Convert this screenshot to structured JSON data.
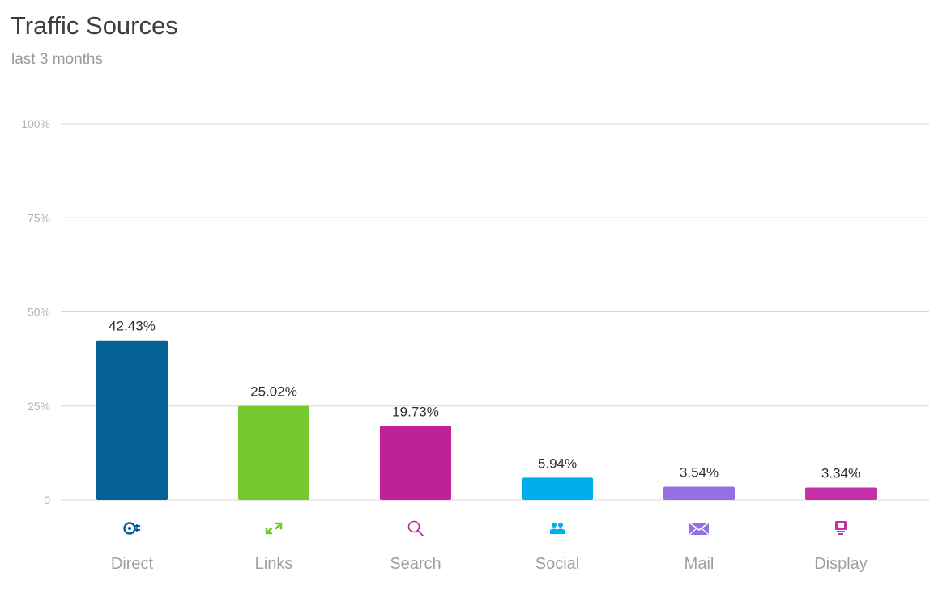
{
  "title": "Traffic Sources",
  "subtitle": "last 3 months",
  "chart_data": {
    "type": "bar",
    "title": "Traffic Sources",
    "subtitle": "last 3 months",
    "categories": [
      "Direct",
      "Links",
      "Search",
      "Social",
      "Mail",
      "Display"
    ],
    "values": [
      42.43,
      25.02,
      19.73,
      5.94,
      3.54,
      3.34
    ],
    "value_labels": [
      "42.43%",
      "25.02%",
      "19.73%",
      "5.94%",
      "3.54%",
      "3.34%"
    ],
    "ylim": [
      0,
      100
    ],
    "yticks": [
      {
        "value": 0,
        "label": "0"
      },
      {
        "value": 25,
        "label": "25%"
      },
      {
        "value": 50,
        "label": "50%"
      },
      {
        "value": 75,
        "label": "75%"
      },
      {
        "value": 100,
        "label": "100%"
      }
    ],
    "grid": true,
    "legend": "none",
    "colors": [
      "#036196",
      "#73c92d",
      "#bf2296",
      "#00aeec",
      "#9470e2",
      "#c52fa8"
    ],
    "icons": [
      "direct-icon",
      "links-icon",
      "search-icon",
      "social-icon",
      "mail-icon",
      "display-icon"
    ]
  }
}
